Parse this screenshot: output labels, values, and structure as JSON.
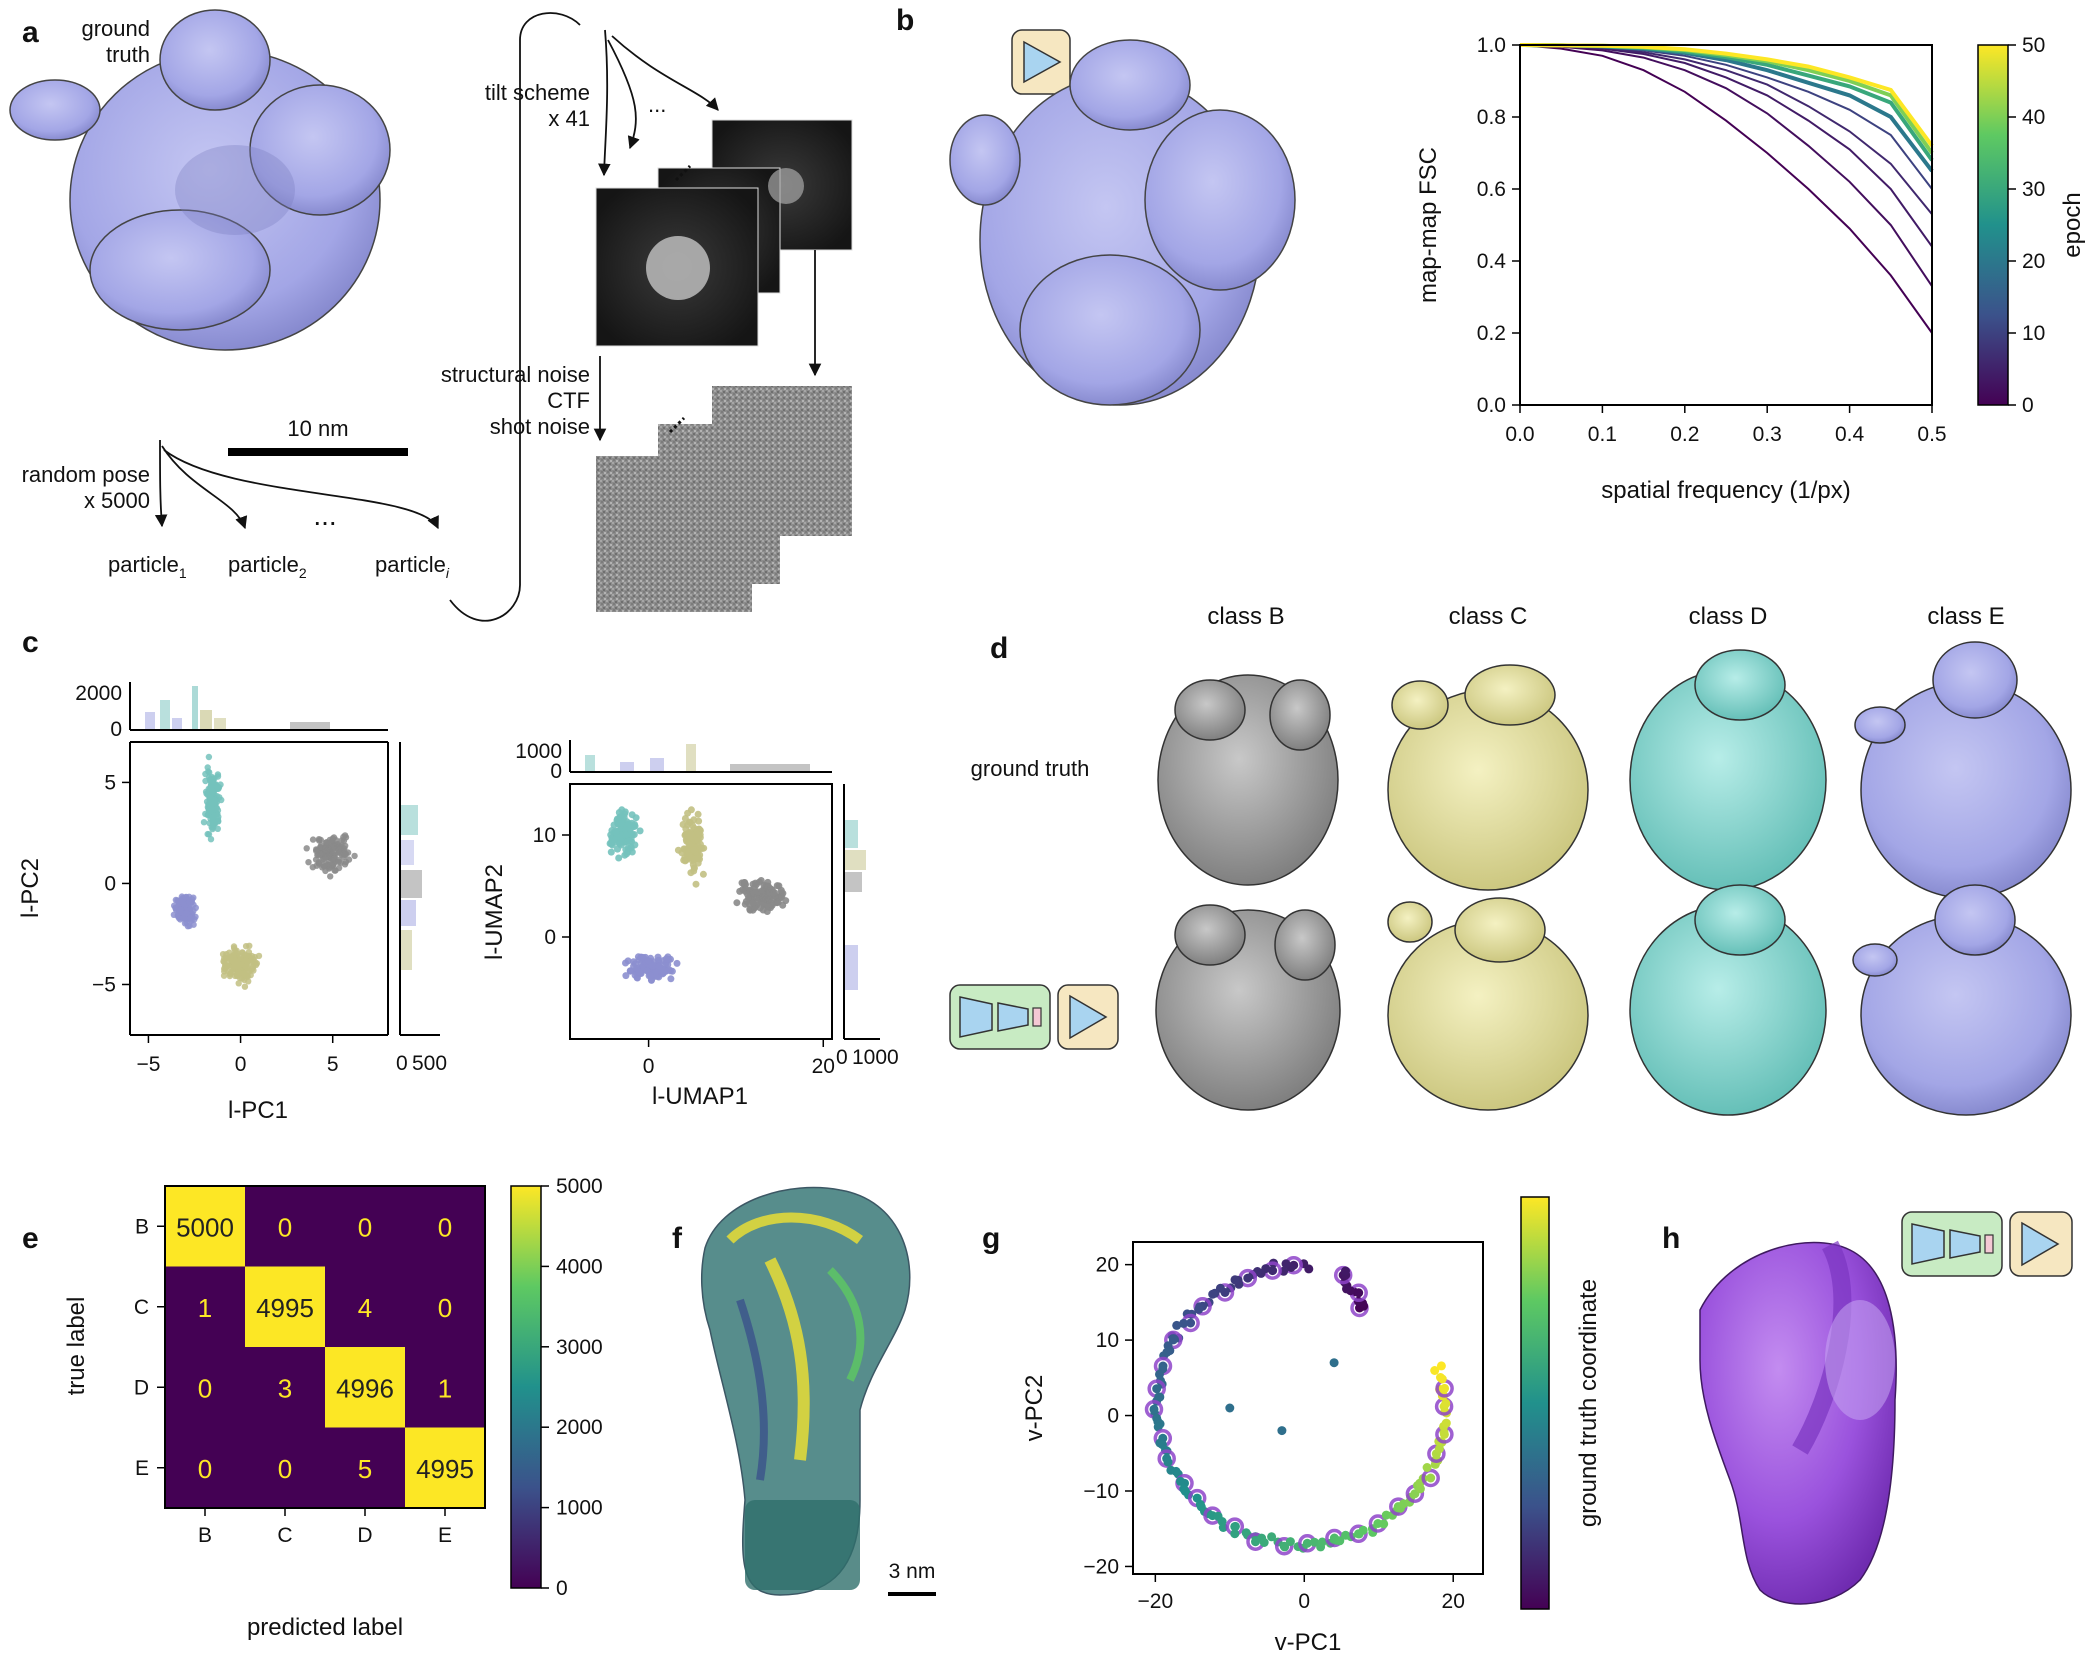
{
  "panel_a": {
    "letter": "a",
    "ground_truth": [
      "ground",
      "truth"
    ],
    "tilt_scheme": [
      "tilt scheme",
      "x 41"
    ],
    "noise": [
      "structural noise",
      "CTF",
      "shot noise"
    ],
    "scale_bar": "10 nm",
    "random_pose": [
      "random pose",
      "x 5000"
    ],
    "ellipsis": "...",
    "particles": [
      {
        "base": "particle",
        "sub": "1"
      },
      {
        "base": "particle",
        "sub": "2"
      },
      {
        "base": "particle",
        "sub": "i"
      }
    ]
  },
  "panel_b": {
    "letter": "b"
  },
  "panel_c": {
    "letter": "c"
  },
  "panel_d": {
    "letter": "d",
    "classes": [
      "class B",
      "class C",
      "class D",
      "class E"
    ],
    "row_label": "ground truth",
    "colors": [
      "#8e8e8e",
      "#e3df98",
      "#7fd6cf",
      "#9c9fe0"
    ]
  },
  "panel_e": {
    "letter": "e"
  },
  "panel_f": {
    "letter": "f",
    "scale_bar": "3 nm"
  },
  "panel_g": {
    "letter": "g"
  },
  "panel_h": {
    "letter": "h"
  },
  "chart_data": [
    {
      "id": "fsc",
      "type": "line",
      "xlabel": "spatial frequency (1/px)",
      "ylabel": "map-map FSC",
      "xlim": [
        0,
        0.5
      ],
      "ylim": [
        0,
        1.0
      ],
      "xticks": [
        "0.0",
        "0.1",
        "0.2",
        "0.3",
        "0.4",
        "0.5"
      ],
      "yticks": [
        "0.0",
        "0.2",
        "0.4",
        "0.6",
        "0.8",
        "1.0"
      ],
      "colorbar_label": "epoch",
      "colorbar_ticks": [
        "0",
        "10",
        "20",
        "30",
        "40",
        "50"
      ],
      "colormap": [
        "#440154",
        "#3b528b",
        "#21918c",
        "#5ec962",
        "#fde725"
      ],
      "x": [
        0,
        0.05,
        0.1,
        0.15,
        0.2,
        0.25,
        0.3,
        0.35,
        0.4,
        0.45,
        0.5
      ],
      "series": [
        {
          "epoch": 0,
          "values": [
            1.0,
            0.99,
            0.97,
            0.93,
            0.87,
            0.79,
            0.7,
            0.6,
            0.49,
            0.36,
            0.2
          ]
        },
        {
          "epoch": 2,
          "values": [
            1.0,
            0.995,
            0.985,
            0.965,
            0.93,
            0.88,
            0.81,
            0.72,
            0.62,
            0.5,
            0.33
          ]
        },
        {
          "epoch": 4,
          "values": [
            1.0,
            0.997,
            0.99,
            0.975,
            0.95,
            0.91,
            0.86,
            0.79,
            0.71,
            0.6,
            0.44
          ]
        },
        {
          "epoch": 6,
          "values": [
            1.0,
            0.998,
            0.993,
            0.98,
            0.96,
            0.93,
            0.89,
            0.83,
            0.76,
            0.67,
            0.53
          ]
        },
        {
          "epoch": 10,
          "values": [
            1.0,
            0.998,
            0.995,
            0.985,
            0.97,
            0.945,
            0.91,
            0.87,
            0.82,
            0.75,
            0.6
          ]
        },
        {
          "epoch": 20,
          "values": [
            1.0,
            0.999,
            0.996,
            0.99,
            0.978,
            0.958,
            0.93,
            0.895,
            0.86,
            0.8,
            0.65
          ]
        },
        {
          "epoch": 30,
          "values": [
            1.0,
            0.999,
            0.997,
            0.992,
            0.982,
            0.966,
            0.945,
            0.915,
            0.885,
            0.84,
            0.68
          ]
        },
        {
          "epoch": 40,
          "values": [
            1.0,
            0.999,
            0.998,
            0.994,
            0.986,
            0.972,
            0.955,
            0.93,
            0.9,
            0.86,
            0.7
          ]
        },
        {
          "epoch": 50,
          "values": [
            1.0,
            0.999,
            0.998,
            0.995,
            0.988,
            0.976,
            0.96,
            0.94,
            0.91,
            0.875,
            0.72
          ]
        }
      ]
    },
    {
      "id": "pca_scatter",
      "type": "scatter",
      "xlabel": "l-PC1",
      "ylabel": "l-PC2",
      "xlim": [
        -6,
        8
      ],
      "ylim": [
        -7.5,
        7
      ],
      "xticks": [
        "−5",
        "0",
        "5"
      ],
      "yticks": [
        "−5",
        "0",
        "5"
      ],
      "top_hist_ticks": [
        "2000",
        "0"
      ],
      "right_hist_ticks": [
        "0",
        "500"
      ],
      "clusters": [
        {
          "class": "B",
          "color": "#8a8a8a",
          "center": [
            5.0,
            1.5
          ],
          "spread": [
            1.0,
            0.8
          ]
        },
        {
          "class": "C",
          "color": "#c2c083",
          "center": [
            0.0,
            -4.0
          ],
          "spread": [
            1.0,
            0.8
          ]
        },
        {
          "class": "D",
          "color": "#74c2bc",
          "center": [
            -1.5,
            4.0
          ],
          "spread": [
            0.4,
            1.5
          ]
        },
        {
          "class": "E",
          "color": "#8c8fcf",
          "center": [
            -3.0,
            -1.3
          ],
          "spread": [
            0.5,
            0.7
          ]
        }
      ]
    },
    {
      "id": "umap_scatter",
      "type": "scatter",
      "xlabel": "l-UMAP1",
      "ylabel": "l-UMAP2",
      "xlim": [
        -9,
        21
      ],
      "ylim": [
        -10,
        15
      ],
      "xticks": [
        "0",
        "20"
      ],
      "yticks": [
        "0",
        "10"
      ],
      "top_hist_ticks": [
        "1000",
        "0"
      ],
      "right_hist_ticks": [
        "0",
        "1000"
      ],
      "clusters": [
        {
          "class": "D",
          "color": "#74c2bc",
          "center": [
            -3,
            10
          ]
        },
        {
          "class": "C",
          "color": "#c2c083",
          "center": [
            5,
            9
          ]
        },
        {
          "class": "B",
          "color": "#8a8a8a",
          "center": [
            13,
            4
          ]
        },
        {
          "class": "E",
          "color": "#8c8fcf",
          "center": [
            0,
            -3
          ]
        }
      ]
    },
    {
      "id": "confusion_matrix",
      "type": "heatmap",
      "xlabel": "predicted label",
      "ylabel": "true label",
      "labels": [
        "B",
        "C",
        "D",
        "E"
      ],
      "matrix": [
        [
          5000,
          0,
          0,
          0
        ],
        [
          1,
          4995,
          4,
          0
        ],
        [
          0,
          3,
          4996,
          1
        ],
        [
          0,
          0,
          5,
          4995
        ]
      ],
      "colorbar_ticks": [
        "0",
        "1000",
        "2000",
        "3000",
        "4000",
        "5000"
      ],
      "colormap": [
        "#440154",
        "#3b528b",
        "#21918c",
        "#5ec962",
        "#fde725"
      ]
    },
    {
      "id": "vpca",
      "type": "scatter",
      "xlabel": "v-PC1",
      "ylabel": "v-PC2",
      "xlim": [
        -23,
        24
      ],
      "ylim": [
        -21,
        23
      ],
      "xticks": [
        "−20",
        "0",
        "20"
      ],
      "yticks": [
        "−20",
        "−10",
        "0",
        "10",
        "20"
      ],
      "colorbar_label": "ground truth coordinate",
      "colormap": [
        "#440154",
        "#3b528b",
        "#21918c",
        "#5ec962",
        "#fde725"
      ],
      "outliers": [
        [
          -3,
          -2
        ],
        [
          4,
          7
        ],
        [
          -10,
          1
        ]
      ]
    }
  ]
}
